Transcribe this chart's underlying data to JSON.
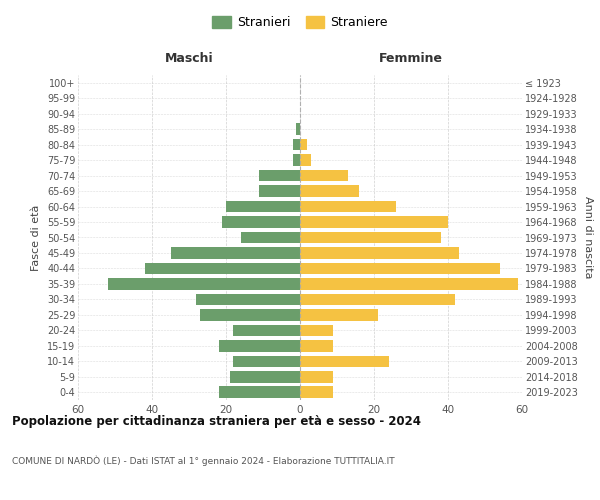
{
  "age_groups": [
    "0-4",
    "5-9",
    "10-14",
    "15-19",
    "20-24",
    "25-29",
    "30-34",
    "35-39",
    "40-44",
    "45-49",
    "50-54",
    "55-59",
    "60-64",
    "65-69",
    "70-74",
    "75-79",
    "80-84",
    "85-89",
    "90-94",
    "95-99",
    "100+"
  ],
  "birth_years": [
    "2019-2023",
    "2014-2018",
    "2009-2013",
    "2004-2008",
    "1999-2003",
    "1994-1998",
    "1989-1993",
    "1984-1988",
    "1979-1983",
    "1974-1978",
    "1969-1973",
    "1964-1968",
    "1959-1963",
    "1954-1958",
    "1949-1953",
    "1944-1948",
    "1939-1943",
    "1934-1938",
    "1929-1933",
    "1924-1928",
    "≤ 1923"
  ],
  "maschi": [
    22,
    19,
    18,
    22,
    18,
    27,
    28,
    52,
    42,
    35,
    16,
    21,
    20,
    11,
    11,
    2,
    2,
    1,
    0,
    0,
    0
  ],
  "femmine": [
    9,
    9,
    24,
    9,
    9,
    21,
    42,
    59,
    54,
    43,
    38,
    40,
    26,
    16,
    13,
    3,
    2,
    0,
    0,
    0,
    0
  ],
  "maschi_color": "#6b9e6b",
  "femmine_color": "#f5c242",
  "title": "Popolazione per cittadinanza straniera per età e sesso - 2024",
  "subtitle": "COMUNE DI NARDÒ (LE) - Dati ISTAT al 1° gennaio 2024 - Elaborazione TUTTITALIA.IT",
  "xlabel_left": "Maschi",
  "xlabel_right": "Femmine",
  "ylabel_left": "Fasce di età",
  "ylabel_right": "Anni di nascita",
  "legend_maschi": "Stranieri",
  "legend_femmine": "Straniere",
  "xlim": 60,
  "background_color": "#ffffff",
  "grid_color": "#cccccc"
}
